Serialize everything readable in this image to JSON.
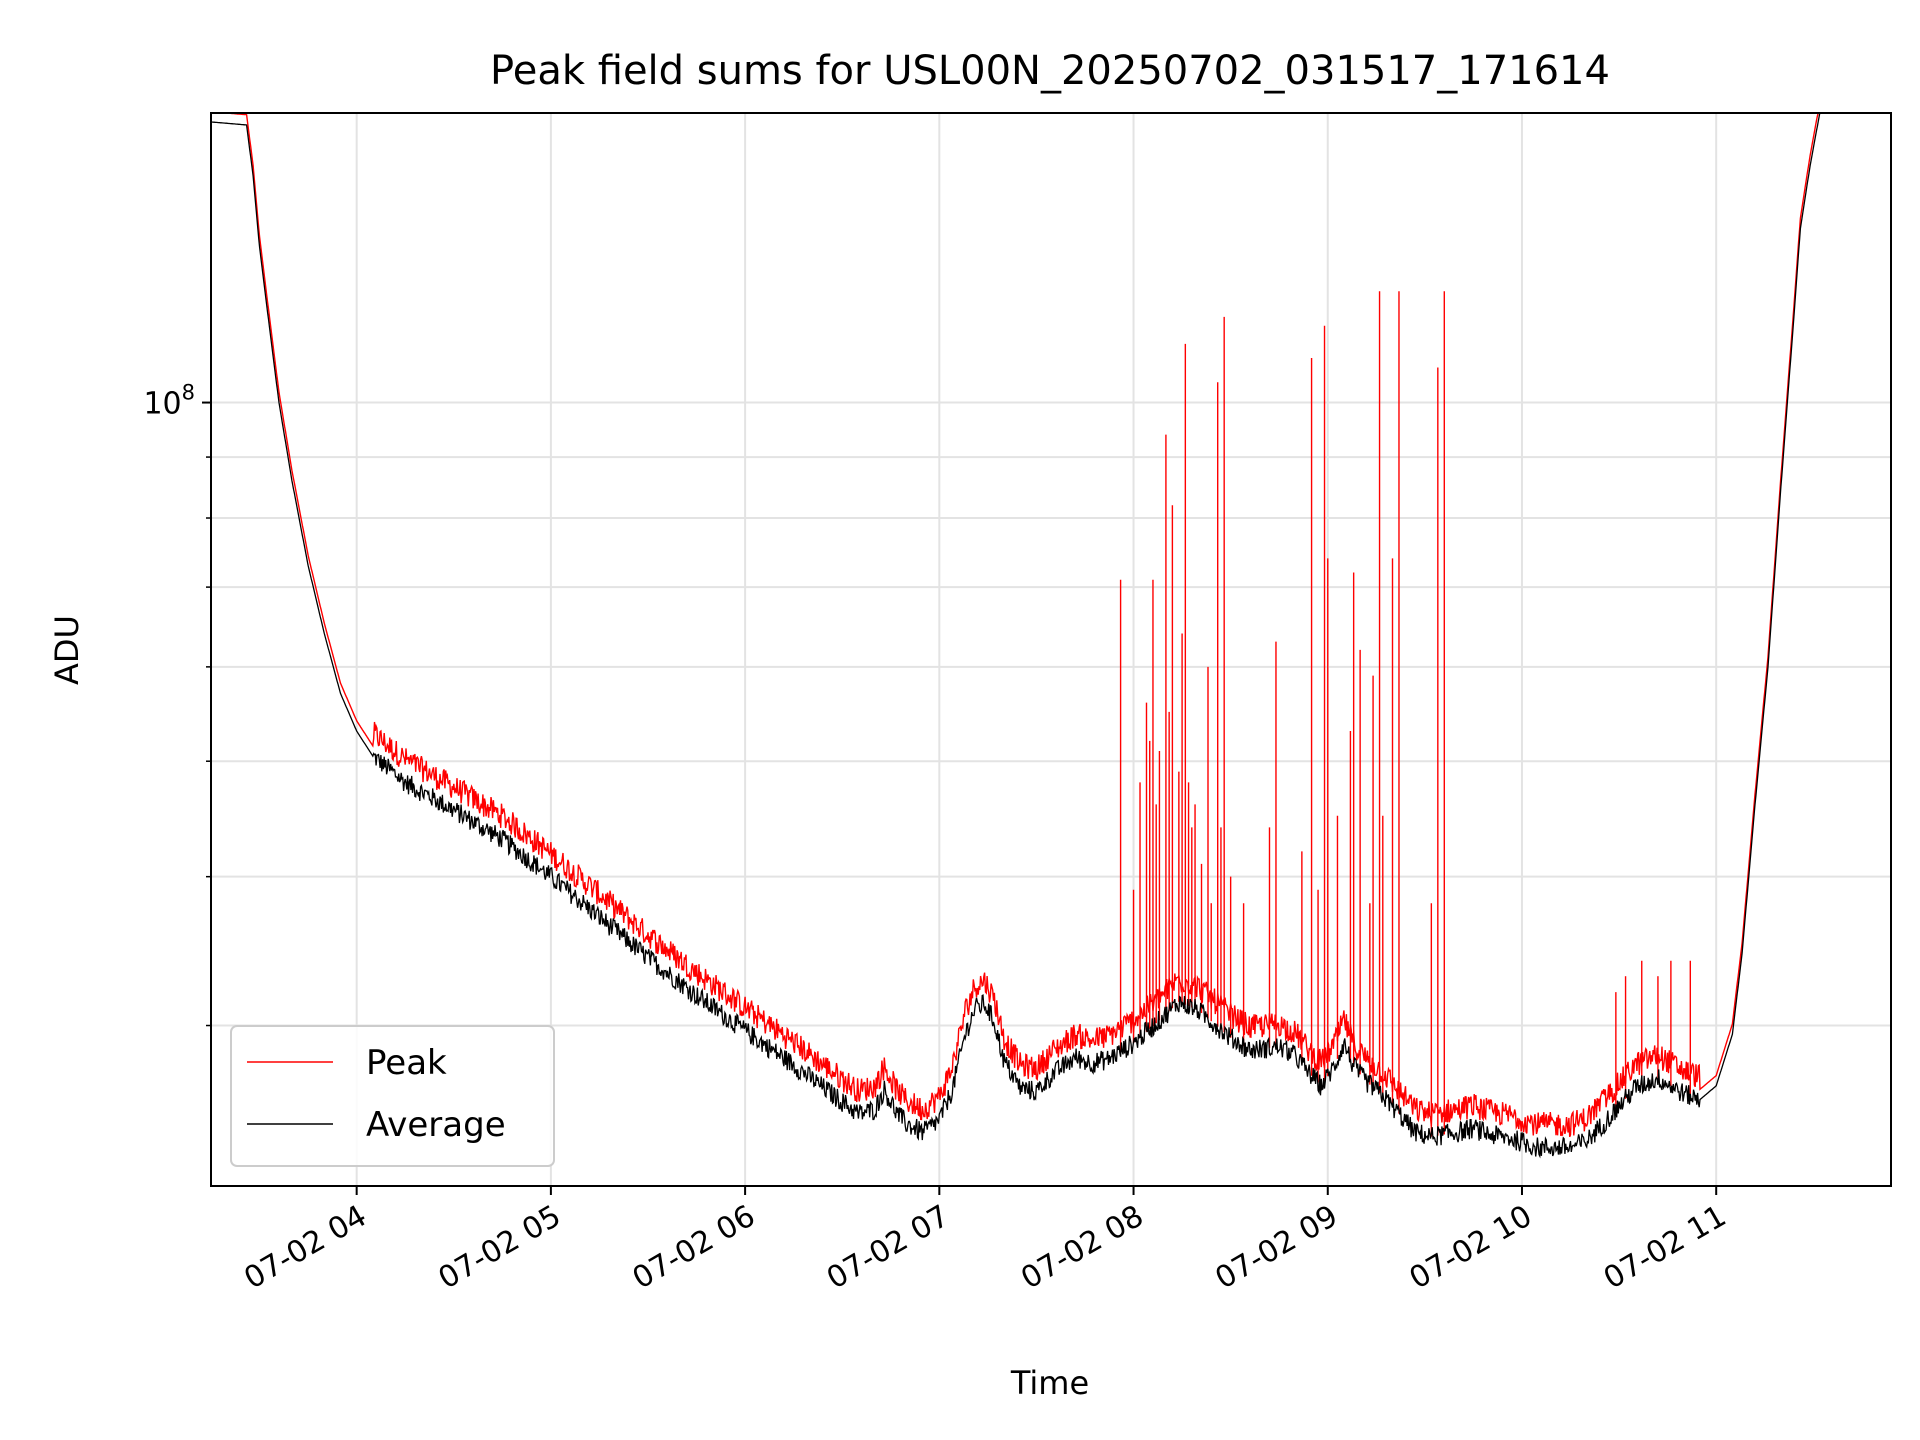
{
  "chart_data": {
    "type": "line",
    "title": "Peak field sums for USL00N_20250702_031517_171614",
    "xlabel": "Time",
    "ylabel": "ADU",
    "yscale": "log",
    "ylim": [
      22000000,
      175000000
    ],
    "xlim": [
      "2025-07-02 03:15",
      "2025-07-02 11:54"
    ],
    "grid": true,
    "legend_position": "lower-left",
    "x_ticks": [
      "07-02 04",
      "07-02 05",
      "07-02 06",
      "07-02 07",
      "07-02 08",
      "07-02 09",
      "07-02 10",
      "07-02 11"
    ],
    "x_tick_times": [
      "2025-07-02 04:00",
      "2025-07-02 05:00",
      "2025-07-02 06:00",
      "2025-07-02 07:00",
      "2025-07-02 08:00",
      "2025-07-02 09:00",
      "2025-07-02 10:00",
      "2025-07-02 11:00"
    ],
    "y_ticks": [
      {
        "value": 100000000,
        "base": "10",
        "exp": "8"
      }
    ],
    "y_minor_ticks": [
      30000000,
      40000000,
      50000000,
      60000000,
      70000000,
      80000000,
      90000000,
      200000000
    ],
    "series": [
      {
        "name": "Peak",
        "color": "#ff0000",
        "baseline_offset": 1.02,
        "spikes": [
          [
            "2025-07-02 07:56",
            71000000
          ],
          [
            "2025-07-02 08:00",
            39000000
          ],
          [
            "2025-07-02 08:02",
            48000000
          ],
          [
            "2025-07-02 08:04",
            56000000
          ],
          [
            "2025-07-02 08:05",
            52000000
          ],
          [
            "2025-07-02 08:06",
            71000000
          ],
          [
            "2025-07-02 08:07",
            46000000
          ],
          [
            "2025-07-02 08:08",
            51000000
          ],
          [
            "2025-07-02 08:10",
            94000000
          ],
          [
            "2025-07-02 08:11",
            55000000
          ],
          [
            "2025-07-02 08:12",
            82000000
          ],
          [
            "2025-07-02 08:14",
            49000000
          ],
          [
            "2025-07-02 08:15",
            64000000
          ],
          [
            "2025-07-02 08:16",
            112000000
          ],
          [
            "2025-07-02 08:17",
            48000000
          ],
          [
            "2025-07-02 08:18",
            44000000
          ],
          [
            "2025-07-02 08:19",
            46000000
          ],
          [
            "2025-07-02 08:21",
            41000000
          ],
          [
            "2025-07-02 08:23",
            60000000
          ],
          [
            "2025-07-02 08:24",
            38000000
          ],
          [
            "2025-07-02 08:26",
            104000000
          ],
          [
            "2025-07-02 08:27",
            44000000
          ],
          [
            "2025-07-02 08:28",
            118000000
          ],
          [
            "2025-07-02 08:30",
            40000000
          ],
          [
            "2025-07-02 08:34",
            38000000
          ],
          [
            "2025-07-02 08:42",
            44000000
          ],
          [
            "2025-07-02 08:44",
            63000000
          ],
          [
            "2025-07-02 08:52",
            42000000
          ],
          [
            "2025-07-02 08:55",
            109000000
          ],
          [
            "2025-07-02 08:57",
            39000000
          ],
          [
            "2025-07-02 08:59",
            116000000
          ],
          [
            "2025-07-02 09:00",
            74000000
          ],
          [
            "2025-07-02 09:03",
            45000000
          ],
          [
            "2025-07-02 09:07",
            53000000
          ],
          [
            "2025-07-02 09:08",
            72000000
          ],
          [
            "2025-07-02 09:10",
            62000000
          ],
          [
            "2025-07-02 09:13",
            38000000
          ],
          [
            "2025-07-02 09:14",
            59000000
          ],
          [
            "2025-07-02 09:16",
            124000000
          ],
          [
            "2025-07-02 09:17",
            45000000
          ],
          [
            "2025-07-02 09:20",
            74000000
          ],
          [
            "2025-07-02 09:22",
            124000000
          ],
          [
            "2025-07-02 09:32",
            38000000
          ],
          [
            "2025-07-02 09:34",
            107000000
          ],
          [
            "2025-07-02 09:36",
            124000000
          ],
          [
            "2025-07-02 10:29",
            32000000
          ],
          [
            "2025-07-02 10:32",
            33000000
          ],
          [
            "2025-07-02 10:37",
            34000000
          ],
          [
            "2025-07-02 10:42",
            33000000
          ],
          [
            "2025-07-02 10:46",
            34000000
          ],
          [
            "2025-07-02 10:52",
            34000000
          ]
        ]
      },
      {
        "name": "Average",
        "color": "#000000",
        "points": [
          [
            "2025-07-02 03:15",
            172000000
          ],
          [
            "2025-07-02 03:26",
            171000000
          ],
          [
            "2025-07-02 03:28",
            155000000
          ],
          [
            "2025-07-02 03:30",
            135000000
          ],
          [
            "2025-07-02 03:33",
            116000000
          ],
          [
            "2025-07-02 03:36",
            100000000
          ],
          [
            "2025-07-02 03:40",
            86000000
          ],
          [
            "2025-07-02 03:45",
            73000000
          ],
          [
            "2025-07-02 03:50",
            64000000
          ],
          [
            "2025-07-02 03:55",
            57000000
          ],
          [
            "2025-07-02 04:00",
            53000000
          ],
          [
            "2025-07-02 04:05",
            50500000
          ],
          [
            "2025-07-02 04:15",
            48000000
          ],
          [
            "2025-07-02 04:30",
            45500000
          ],
          [
            "2025-07-02 04:45",
            43000000
          ],
          [
            "2025-07-02 05:00",
            40000000
          ],
          [
            "2025-07-02 05:15",
            37000000
          ],
          [
            "2025-07-02 05:30",
            34200000
          ],
          [
            "2025-07-02 05:45",
            31800000
          ],
          [
            "2025-07-02 06:00",
            29700000
          ],
          [
            "2025-07-02 06:15",
            27800000
          ],
          [
            "2025-07-02 06:25",
            26500000
          ],
          [
            "2025-07-02 06:35",
            25300000
          ],
          [
            "2025-07-02 06:40",
            25500000
          ],
          [
            "2025-07-02 06:43",
            26500000
          ],
          [
            "2025-07-02 06:47",
            25300000
          ],
          [
            "2025-07-02 06:50",
            24800000
          ],
          [
            "2025-07-02 06:55",
            24400000
          ],
          [
            "2025-07-02 07:00",
            25000000
          ],
          [
            "2025-07-02 07:04",
            26500000
          ],
          [
            "2025-07-02 07:08",
            29500000
          ],
          [
            "2025-07-02 07:11",
            31000000
          ],
          [
            "2025-07-02 07:14",
            31300000
          ],
          [
            "2025-07-02 07:17",
            30200000
          ],
          [
            "2025-07-02 07:20",
            28000000
          ],
          [
            "2025-07-02 07:25",
            26600000
          ],
          [
            "2025-07-02 07:30",
            26400000
          ],
          [
            "2025-07-02 07:35",
            27300000
          ],
          [
            "2025-07-02 07:42",
            28200000
          ],
          [
            "2025-07-02 07:47",
            27900000
          ],
          [
            "2025-07-02 07:52",
            28100000
          ],
          [
            "2025-07-02 08:00",
            29000000
          ],
          [
            "2025-07-02 08:08",
            30300000
          ],
          [
            "2025-07-02 08:14",
            31400000
          ],
          [
            "2025-07-02 08:20",
            30900000
          ],
          [
            "2025-07-02 08:30",
            29300000
          ],
          [
            "2025-07-02 08:36",
            28600000
          ],
          [
            "2025-07-02 08:45",
            28800000
          ],
          [
            "2025-07-02 08:50",
            28300000
          ],
          [
            "2025-07-02 08:54",
            27400000
          ],
          [
            "2025-07-02 08:58",
            26700000
          ],
          [
            "2025-07-02 09:02",
            27700000
          ],
          [
            "2025-07-02 09:05",
            29000000
          ],
          [
            "2025-07-02 09:08",
            27700000
          ],
          [
            "2025-07-02 09:12",
            26900000
          ],
          [
            "2025-07-02 09:17",
            26200000
          ],
          [
            "2025-07-02 09:22",
            25300000
          ],
          [
            "2025-07-02 09:27",
            24400000
          ],
          [
            "2025-07-02 09:32",
            24200000
          ],
          [
            "2025-07-02 09:40",
            24400000
          ],
          [
            "2025-07-02 09:45",
            24600000
          ],
          [
            "2025-07-02 09:50",
            24300000
          ],
          [
            "2025-07-02 09:57",
            24100000
          ],
          [
            "2025-07-02 10:05",
            23700000
          ],
          [
            "2025-07-02 10:15",
            23700000
          ],
          [
            "2025-07-02 10:20",
            24000000
          ],
          [
            "2025-07-02 10:28",
            25300000
          ],
          [
            "2025-07-02 10:35",
            26600000
          ],
          [
            "2025-07-02 10:42",
            27100000
          ],
          [
            "2025-07-02 10:50",
            26300000
          ],
          [
            "2025-07-02 10:55",
            26000000
          ],
          [
            "2025-07-02 11:00",
            26700000
          ],
          [
            "2025-07-02 11:05",
            29500000
          ],
          [
            "2025-07-02 11:08",
            34500000
          ],
          [
            "2025-07-02 11:12",
            46000000
          ],
          [
            "2025-07-02 11:16",
            60000000
          ],
          [
            "2025-07-02 11:20",
            85000000
          ],
          [
            "2025-07-02 11:24",
            118000000
          ],
          [
            "2025-07-02 11:26",
            140000000
          ],
          [
            "2025-07-02 11:29",
            158000000
          ],
          [
            "2025-07-02 11:32",
            175000000
          ]
        ]
      }
    ]
  }
}
